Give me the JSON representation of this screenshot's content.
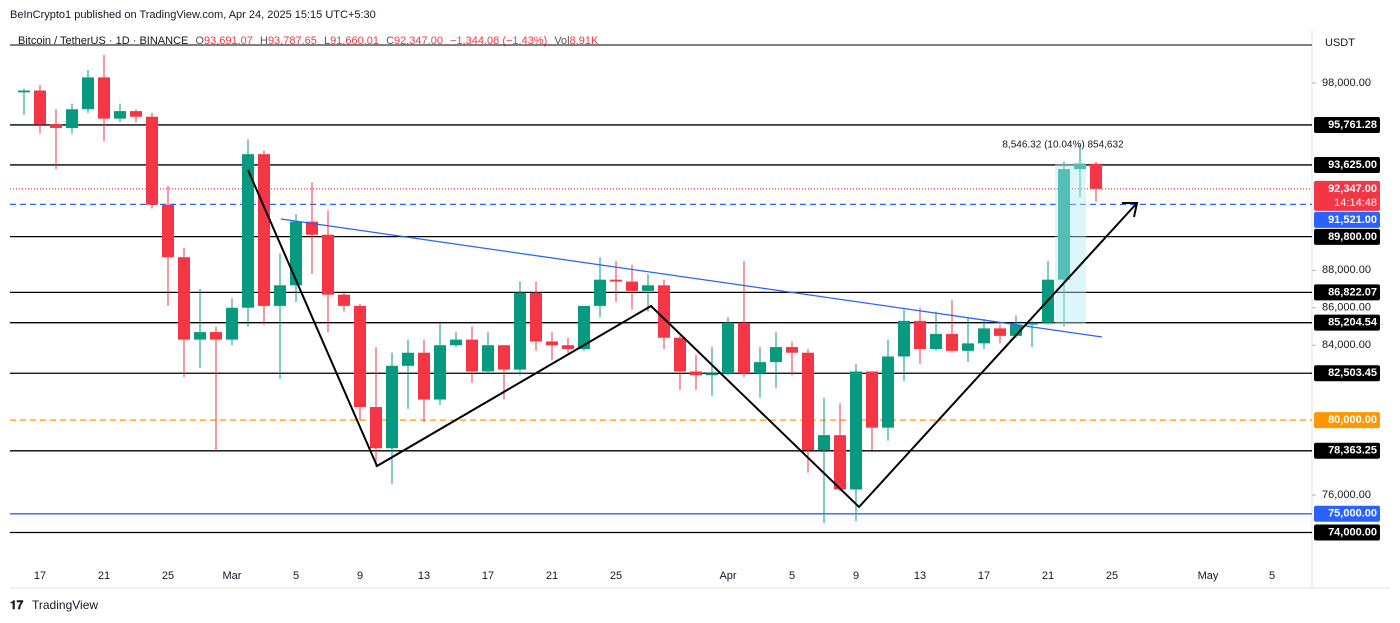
{
  "header": {
    "attribution": "BeInCrypto1 published on TradingView.com, Apr 24, 2025 15:15 UTC+5:30",
    "symbol": "Bitcoin / TetherUS · 1D · BINANCE",
    "ohlc": [
      {
        "key": "O",
        "value": "93,691.07"
      },
      {
        "key": "H",
        "value": "93,787.65"
      },
      {
        "key": "L",
        "value": "91,660.01"
      },
      {
        "key": "C",
        "value": "92,347.00"
      }
    ],
    "change": "−1,344.08 (−1.43%)",
    "volume": {
      "key": "Vol",
      "value": "8.91K"
    }
  },
  "currency": "USDT",
  "footer": "TradingView",
  "chart_data": {
    "type": "candlestick",
    "categories": [
      null,
      "17",
      null,
      null,
      null,
      "21",
      null,
      null,
      null,
      "25",
      null,
      null,
      null,
      "Mar",
      null,
      null,
      null,
      "5",
      null,
      null,
      null,
      "9",
      null,
      null,
      null,
      "13",
      null,
      null,
      null,
      "17",
      null,
      null,
      null,
      "21",
      null,
      null,
      null,
      "25",
      null,
      null,
      null,
      null,
      null,
      null,
      "Apr",
      null,
      null,
      null,
      "5",
      null,
      null,
      null,
      "9",
      null,
      null,
      null,
      "13",
      null,
      null,
      null,
      "17",
      null,
      null,
      null,
      "21",
      null,
      null,
      null,
      "25",
      null,
      null,
      null,
      null,
      null,
      "May",
      null,
      null,
      null,
      "5",
      null
    ],
    "open": [
      97500,
      97600,
      95800,
      95600,
      96600,
      98300,
      96100,
      96500,
      96200,
      91500,
      88700,
      84300,
      84700,
      84300,
      86000,
      94200,
      86100,
      87200,
      90600,
      89900,
      86700,
      86100,
      80700,
      78500,
      82900,
      83600,
      81100,
      84000,
      84300,
      82600,
      84000,
      82700,
      86800,
      84200,
      84000,
      83800,
      86100,
      87500,
      87400,
      86900,
      87200,
      84400,
      82600,
      82400,
      82500,
      85200,
      82500,
      83100,
      83900,
      83600,
      78400,
      79200,
      76300,
      82600,
      79600,
      83400,
      85300,
      83800,
      84600,
      83700,
      84100,
      84900,
      84500,
      85100,
      85200,
      87500,
      93400,
      93691.07,
      null,
      null,
      null,
      null,
      null,
      null,
      null,
      null,
      null,
      null,
      null,
      null
    ],
    "high": [
      97700,
      97900,
      96600,
      96900,
      98700,
      99500,
      96900,
      96600,
      96400,
      92500,
      89200,
      87000,
      85000,
      86500,
      95000,
      94400,
      88900,
      91000,
      92700,
      91200,
      86800,
      86200,
      83900,
      83600,
      84300,
      84300,
      85200,
      84700,
      85000,
      84700,
      84000,
      87400,
      87400,
      84700,
      84400,
      86100,
      88700,
      88500,
      88300,
      87800,
      87500,
      84500,
      83500,
      83900,
      85500,
      88500,
      83900,
      84700,
      84200,
      83800,
      81200,
      80900,
      83000,
      82600,
      84300,
      85900,
      86000,
      85800,
      86400,
      85500,
      85400,
      85100,
      85600,
      85300,
      88500,
      93800,
      94700,
      93787.65,
      null,
      null,
      null,
      null,
      null,
      null,
      null,
      null,
      null,
      null,
      null,
      null
    ],
    "low": [
      96300,
      95300,
      93400,
      95300,
      96400,
      94900,
      95900,
      95900,
      91300,
      86100,
      82300,
      82800,
      78300,
      84000,
      85000,
      85100,
      82200,
      86300,
      87800,
      84700,
      85800,
      80000,
      77500,
      76600,
      80600,
      79900,
      80800,
      83900,
      82000,
      82500,
      81100,
      82400,
      83700,
      83200,
      83600,
      83700,
      85500,
      86300,
      85900,
      85800,
      83800,
      81600,
      81600,
      81300,
      82400,
      82300,
      81200,
      81700,
      82400,
      77200,
      74500,
      76200,
      74600,
      78400,
      78900,
      82100,
      83000,
      83700,
      83600,
      83100,
      83800,
      84100,
      84400,
      83900,
      85100,
      85000,
      91900,
      91660.01,
      null,
      null,
      null,
      null,
      null,
      null,
      null,
      null,
      null,
      null,
      null,
      null
    ],
    "close": [
      97600,
      95800,
      95600,
      96600,
      98300,
      96100,
      96500,
      96200,
      91500,
      88700,
      84300,
      84700,
      84300,
      86000,
      94200,
      86100,
      87200,
      90600,
      89900,
      86700,
      86100,
      80700,
      78500,
      82900,
      83600,
      81100,
      84000,
      84300,
      82600,
      84000,
      82700,
      86800,
      84200,
      84000,
      83800,
      86100,
      87500,
      87400,
      86900,
      87200,
      84400,
      82600,
      82400,
      82500,
      85200,
      82500,
      83100,
      83900,
      83600,
      78400,
      79200,
      76300,
      82600,
      79600,
      83400,
      85300,
      83800,
      84600,
      83700,
      84100,
      84900,
      84500,
      85100,
      85200,
      87500,
      93400,
      93700,
      92347,
      null,
      null,
      null,
      null,
      null,
      null,
      null,
      null,
      null,
      null,
      null,
      null
    ],
    "up_color": "#089981",
    "down_color": "#f23645",
    "ylim": [
      72800,
      100030
    ],
    "yticks": [
      {
        "value": 76000,
        "label": "76,000.00"
      },
      {
        "value": 84000,
        "label": "84,000.00"
      },
      {
        "value": 86000,
        "label": "86,000.00"
      },
      {
        "value": 88000,
        "label": "88,000.00"
      },
      {
        "value": 98000,
        "label": "98,000.00"
      }
    ],
    "levels": [
      {
        "value": 95761.28,
        "label": "95,761.28",
        "color": "#000000",
        "style": "solid"
      },
      {
        "value": 93625,
        "label": "93,625.00",
        "color": "#000000",
        "style": "solid"
      },
      {
        "value": 92347,
        "label": "92,347.00",
        "color": "#f23645",
        "style": "dotted",
        "countdown": "14:14:48"
      },
      {
        "value": 91521,
        "label": "91,521.00",
        "color": "#2962ff",
        "style": "dashed"
      },
      {
        "value": 89800,
        "label": "89,800.00",
        "color": "#000000",
        "style": "solid"
      },
      {
        "value": 86822.07,
        "label": "86,822.07",
        "color": "#000000",
        "style": "solid"
      },
      {
        "value": 85204.54,
        "label": "85,204.54",
        "color": "#000000",
        "style": "solid"
      },
      {
        "value": 82503.45,
        "label": "82,503.45",
        "color": "#000000",
        "style": "solid"
      },
      {
        "value": 80000,
        "label": "80,000.00",
        "color": "#ff9800",
        "style": "dashed"
      },
      {
        "value": 78363.25,
        "label": "78,363.25",
        "color": "#000000",
        "style": "solid"
      },
      {
        "value": 75000,
        "label": "75,000.00",
        "color": "#2962ff",
        "style": "solid"
      },
      {
        "value": 74000,
        "label": "74,000.00",
        "color": "#000000",
        "style": "solid"
      }
    ],
    "annotation": "8,546.32 (10.04%) 854,632"
  }
}
